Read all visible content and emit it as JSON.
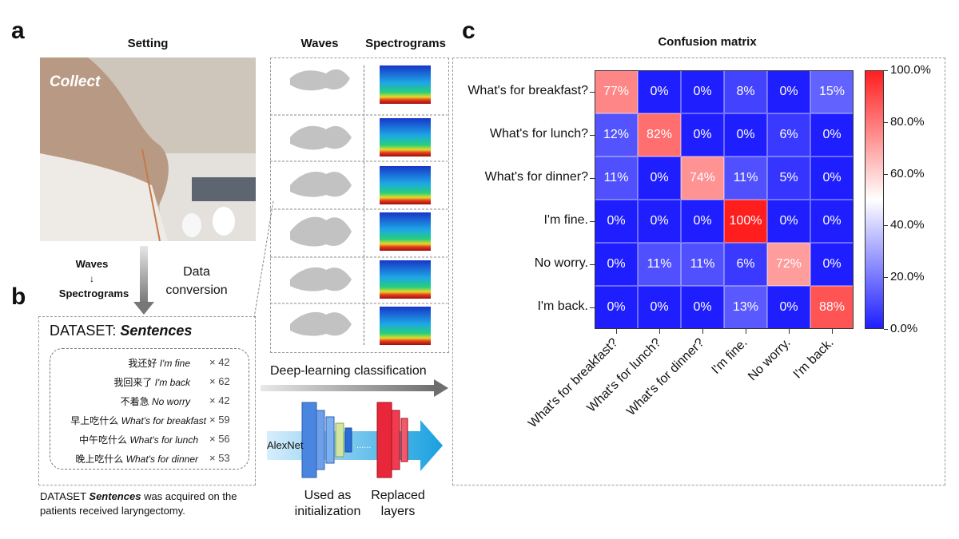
{
  "panels": {
    "a": "a",
    "b": "b",
    "c": "c"
  },
  "setting": {
    "title": "Setting",
    "photo_label": "Collect"
  },
  "conversion": {
    "waves": "Waves",
    "arrow": "↓",
    "spectrograms": "Spectrograms",
    "label_line1": "Data",
    "label_line2": "conversion"
  },
  "waves_header": "Waves",
  "spectrograms_header": "Spectrograms",
  "deep_learning_label": "Deep-learning classification",
  "network": {
    "alexnet": "AlexNet",
    "dots": "......",
    "used_line1": "Used as",
    "used_line2": "initialization",
    "replaced_line1": "Replaced",
    "replaced_line2": "layers"
  },
  "dataset": {
    "title_prefix": "DATASET: ",
    "title_name": "Sentences",
    "entries": [
      {
        "chinese": "我还好",
        "english": "I'm fine",
        "count": "× 42"
      },
      {
        "chinese": "我回来了",
        "english": "I'm back",
        "count": "× 62"
      },
      {
        "chinese": "不着急",
        "english": "No worry",
        "count": "× 42"
      },
      {
        "chinese": "早上吃什么",
        "english": "What's for breakfast",
        "count": "× 59"
      },
      {
        "chinese": "中午吃什么",
        "english": "What's for lunch",
        "count": "× 56"
      },
      {
        "chinese": "晚上吃什么",
        "english": "What's for dinner",
        "count": "× 53"
      }
    ],
    "caption_prefix": "DATASET ",
    "caption_name": "Sentences",
    "caption_rest": " was acquired on the",
    "caption_line2": "patients received laryngectomy."
  },
  "chart_data": {
    "type": "heatmap",
    "title": "Confusion matrix",
    "rows": [
      "What's for breakfast?",
      "What's for lunch?",
      "What's for dinner?",
      "I'm fine.",
      "No worry.",
      "I'm back."
    ],
    "columns": [
      "What's for breakfast?",
      "What's for lunch?",
      "What's for dinner?",
      "I'm fine.",
      "No worry.",
      "I'm back."
    ],
    "values": [
      [
        77,
        0,
        0,
        8,
        0,
        15
      ],
      [
        12,
        82,
        0,
        0,
        6,
        0
      ],
      [
        11,
        0,
        74,
        11,
        5,
        0
      ],
      [
        0,
        0,
        0,
        100,
        0,
        0
      ],
      [
        0,
        11,
        11,
        6,
        72,
        0
      ],
      [
        0,
        0,
        0,
        13,
        0,
        88
      ]
    ],
    "cell_labels": [
      [
        "77%",
        "0%",
        "0%",
        "8%",
        "0%",
        "15%"
      ],
      [
        "12%",
        "82%",
        "0%",
        "0%",
        "6%",
        "0%"
      ],
      [
        "11%",
        "0%",
        "74%",
        "11%",
        "5%",
        "0%"
      ],
      [
        "0%",
        "0%",
        "0%",
        "100%",
        "0%",
        "0%"
      ],
      [
        "0%",
        "11%",
        "11%",
        "6%",
        "72%",
        "0%"
      ],
      [
        "0%",
        "0%",
        "0%",
        "13%",
        "0%",
        "88%"
      ]
    ],
    "colorbar": {
      "ticks": [
        "100.0%",
        "80.0%",
        "60.0%",
        "40.0%",
        "20.0%",
        "0.0%"
      ],
      "range": [
        0,
        100
      ],
      "low_color": "#1e1eff",
      "mid_color": "#ffffff",
      "high_color": "#ff1e1e"
    }
  }
}
